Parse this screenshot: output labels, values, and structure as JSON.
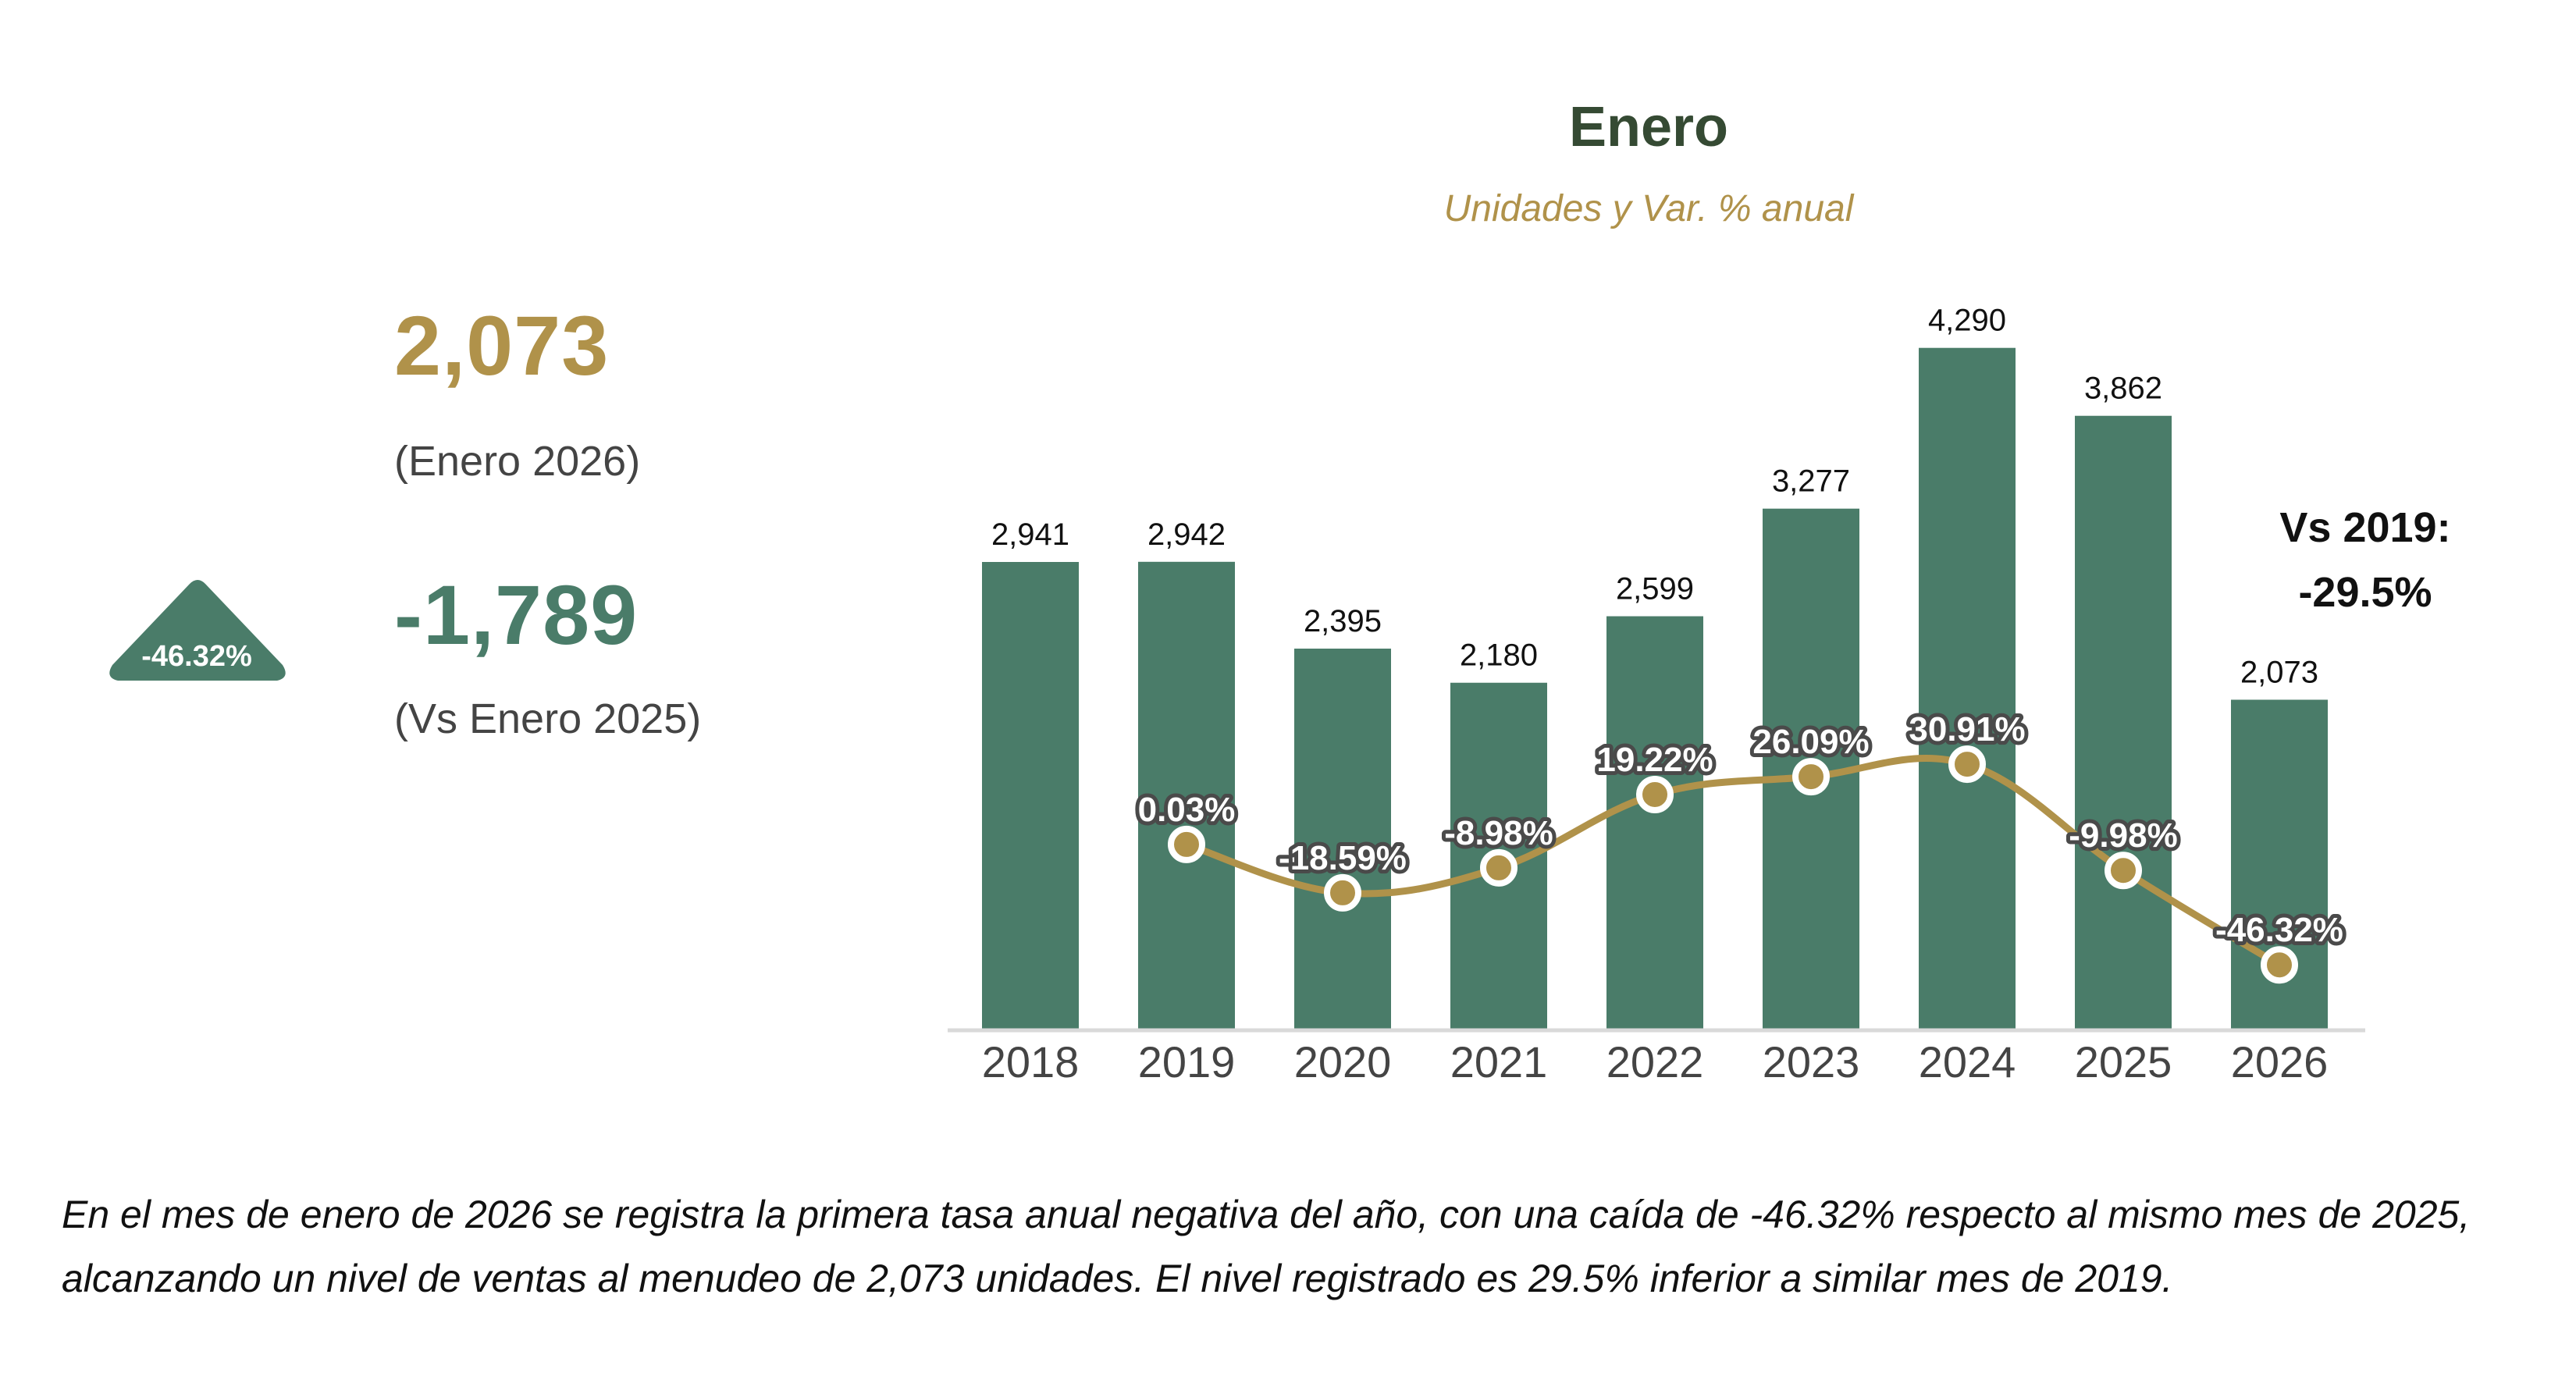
{
  "kpi": {
    "value": "2,073",
    "period": "(Enero 2026)",
    "delta": "-1,789",
    "delta_label": "(Vs Enero 2025)",
    "badge_pct": "-46.32%"
  },
  "comparison": {
    "label": "Vs 2019:",
    "value": "-29.5%"
  },
  "summary": "En el mes de enero de 2026 se registra la primera tasa anual negativa del año, con una caída de -46.32% respecto al mismo mes de 2025, alcanzando un nivel de ventas al menudeo de 2,073 unidades. El nivel registrado es 29.5% inferior a similar mes de 2019.",
  "colors": {
    "bar": "#4a7c69",
    "line": "#b0924a",
    "title": "#354a33",
    "subtitle": "#b0924a",
    "axis": "#d9d9d9"
  },
  "chart_data": {
    "type": "bar",
    "title": "Enero",
    "subtitle": "Unidades y Var. % anual",
    "xlabel": "",
    "ylabel": "",
    "categories": [
      "2018",
      "2019",
      "2020",
      "2021",
      "2022",
      "2023",
      "2024",
      "2025",
      "2026"
    ],
    "series": [
      {
        "name": "Unidades",
        "kind": "bar",
        "values": [
          2941,
          2942,
          2395,
          2180,
          2599,
          3277,
          4290,
          3862,
          2073
        ],
        "labels": [
          "2,941",
          "2,942",
          "2,395",
          "2,180",
          "2,599",
          "3,277",
          "4,290",
          "3,862",
          "2,073"
        ]
      },
      {
        "name": "Var. % anual",
        "kind": "line",
        "values": [
          null,
          0.03,
          -18.59,
          -8.98,
          19.22,
          26.09,
          30.91,
          -9.98,
          -46.32
        ],
        "labels": [
          null,
          "0.03%",
          "-18.59%",
          "-8.98%",
          "19.22%",
          "26.09%",
          "30.91%",
          "-9.98%",
          "-46.32%"
        ]
      }
    ],
    "ylim": [
      0,
      4500
    ],
    "secondary_ylim": [
      -120,
      110
    ],
    "grid": false,
    "legend": "none"
  }
}
